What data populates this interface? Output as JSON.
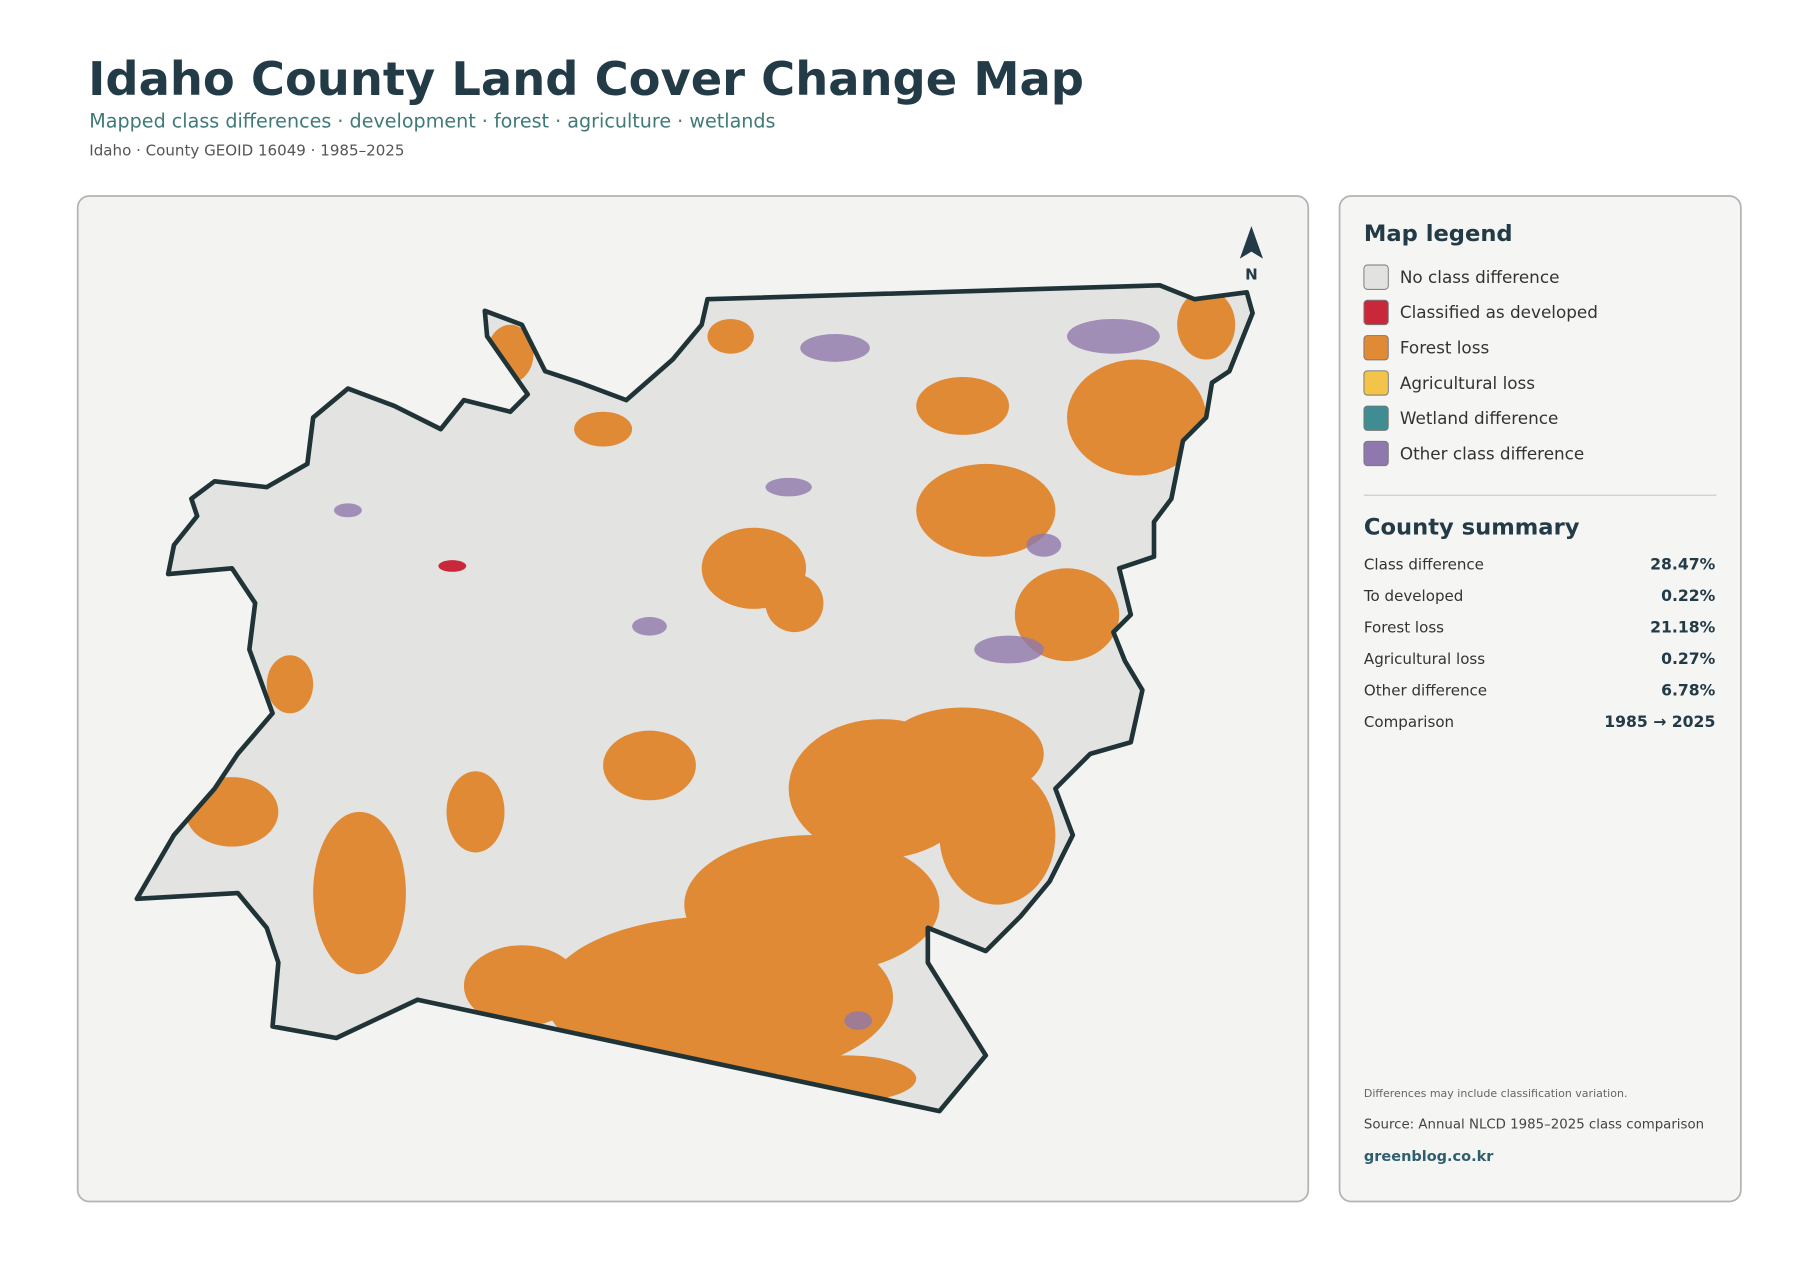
{
  "header": {
    "title": "Idaho County Land Cover Change Map",
    "subtitle": "Mapped class differences · development · forest · agriculture · wetlands",
    "meta": "Idaho · County GEOID 16049 · 1985–2025"
  },
  "map": {
    "north_label": "N"
  },
  "legend": {
    "title": "Map legend",
    "items": [
      {
        "label": "No class difference",
        "color": "#e2e2e0"
      },
      {
        "label": "Classified as developed",
        "color": "#c8283a"
      },
      {
        "label": "Forest loss",
        "color": "#e08a35"
      },
      {
        "label": "Agricultural loss",
        "color": "#f2c44a"
      },
      {
        "label": "Wetland difference",
        "color": "#3f8c92"
      },
      {
        "label": "Other class difference",
        "color": "#8f78ad"
      }
    ]
  },
  "summary": {
    "title": "County summary",
    "rows": [
      {
        "label": "Class difference",
        "value": "28.47%"
      },
      {
        "label": "To developed",
        "value": "0.22%"
      },
      {
        "label": "Forest loss",
        "value": "21.18%"
      },
      {
        "label": "Agricultural loss",
        "value": "0.27%"
      },
      {
        "label": "Other difference",
        "value": "6.78%"
      },
      {
        "label": "Comparison",
        "value": "1985 → 2025"
      }
    ]
  },
  "footer": {
    "note": "Differences may include classification variation.",
    "source": "Source: Annual NLCD 1985–2025 class comparison",
    "site": "greenblog.co.kr"
  }
}
